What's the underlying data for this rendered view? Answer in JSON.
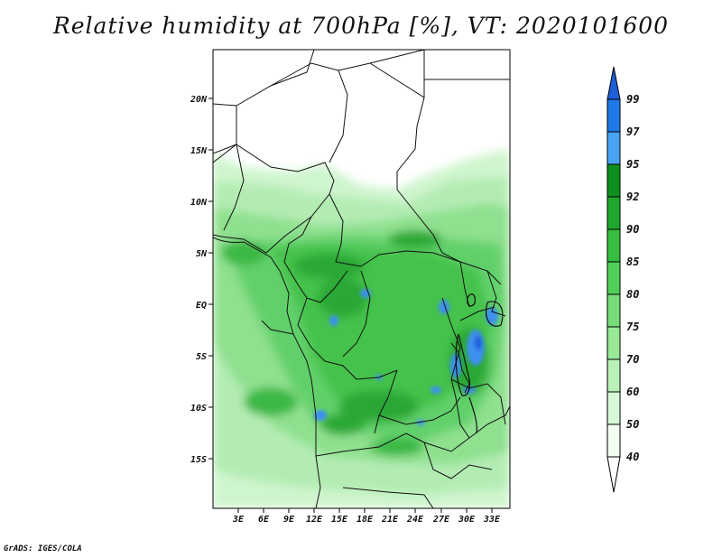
{
  "title": "Relative humidity at 700hPa [%], VT: 2020101600",
  "credit": "GrADS: IGES/COLA",
  "map": {
    "lon_ticks": [
      "3E",
      "6E",
      "9E",
      "12E",
      "15E",
      "18E",
      "21E",
      "24E",
      "27E",
      "30E",
      "33E"
    ],
    "lat_ticks": [
      "20N",
      "15N",
      "10N",
      "5N",
      "EQ",
      "5S",
      "10S",
      "15S"
    ]
  },
  "colorbar": {
    "levels": [
      "99",
      "97",
      "95",
      "92",
      "90",
      "85",
      "80",
      "75",
      "70",
      "60",
      "50",
      "40"
    ],
    "colors": [
      "#1e5fd8",
      "#1f78e8",
      "#4aa2f2",
      "#0f8f1e",
      "#1ea82e",
      "#35be3f",
      "#50d058",
      "#78dd78",
      "#98e898",
      "#b8f2b8",
      "#d8f8d8",
      "#f2fff2",
      "#ffffff"
    ]
  }
}
